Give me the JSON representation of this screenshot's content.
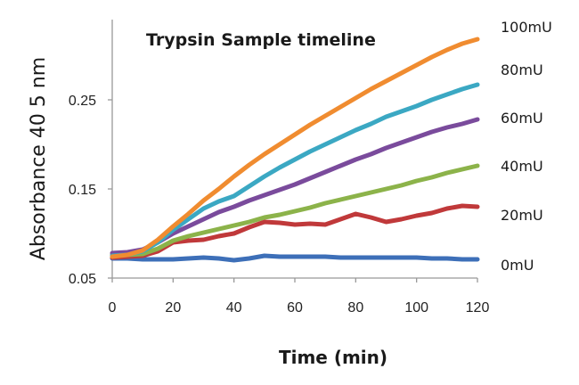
{
  "chart_data": {
    "type": "line",
    "title": "Trypsin Sample timeline",
    "xlabel": "Time (min)",
    "ylabel": "Absorbance 40 5 nm",
    "xlim": [
      0,
      120
    ],
    "ylim": [
      0.05,
      0.34
    ],
    "x_ticks": [
      "0",
      "20",
      "40",
      "60",
      "80",
      "100",
      "120"
    ],
    "y_ticks": [
      "0.05",
      "0.15",
      "0.25"
    ],
    "grid": false,
    "legend": "inline-right",
    "x": [
      0,
      5,
      10,
      15,
      20,
      25,
      30,
      35,
      40,
      45,
      50,
      55,
      60,
      65,
      70,
      75,
      80,
      85,
      90,
      95,
      100,
      105,
      110,
      115,
      120
    ],
    "series": [
      {
        "name": "0mU",
        "color": "#3d6fb8",
        "values": [
          0.072,
          0.072,
          0.071,
          0.071,
          0.071,
          0.072,
          0.073,
          0.072,
          0.07,
          0.072,
          0.075,
          0.074,
          0.074,
          0.074,
          0.074,
          0.073,
          0.073,
          0.073,
          0.073,
          0.073,
          0.073,
          0.072,
          0.072,
          0.071,
          0.071
        ]
      },
      {
        "name": "20mU",
        "color": "#c0393a",
        "values": [
          0.073,
          0.074,
          0.075,
          0.08,
          0.09,
          0.092,
          0.093,
          0.097,
          0.1,
          0.107,
          0.113,
          0.112,
          0.11,
          0.111,
          0.11,
          0.116,
          0.122,
          0.118,
          0.113,
          0.116,
          0.12,
          0.123,
          0.128,
          0.131,
          0.13
        ]
      },
      {
        "name": "40mU",
        "color": "#8cb34a",
        "values": [
          0.076,
          0.076,
          0.077,
          0.083,
          0.092,
          0.097,
          0.101,
          0.105,
          0.109,
          0.113,
          0.118,
          0.121,
          0.125,
          0.129,
          0.134,
          0.138,
          0.142,
          0.146,
          0.15,
          0.154,
          0.159,
          0.163,
          0.168,
          0.172,
          0.176
        ]
      },
      {
        "name": "60mU",
        "color": "#7a4b9c",
        "values": [
          0.078,
          0.079,
          0.082,
          0.09,
          0.1,
          0.108,
          0.116,
          0.124,
          0.13,
          0.137,
          0.143,
          0.149,
          0.155,
          0.162,
          0.169,
          0.176,
          0.183,
          0.189,
          0.196,
          0.202,
          0.208,
          0.214,
          0.219,
          0.223,
          0.228
        ]
      },
      {
        "name": "80mU",
        "color": "#3ba8c3",
        "values": [
          0.075,
          0.076,
          0.08,
          0.09,
          0.104,
          0.116,
          0.128,
          0.136,
          0.142,
          0.153,
          0.164,
          0.174,
          0.183,
          0.192,
          0.2,
          0.208,
          0.216,
          0.223,
          0.231,
          0.237,
          0.243,
          0.25,
          0.256,
          0.262,
          0.267
        ]
      },
      {
        "name": "100mU",
        "color": "#f08c30",
        "values": [
          0.074,
          0.076,
          0.081,
          0.093,
          0.108,
          0.122,
          0.137,
          0.15,
          0.164,
          0.177,
          0.189,
          0.2,
          0.211,
          0.222,
          0.232,
          0.242,
          0.252,
          0.262,
          0.271,
          0.28,
          0.289,
          0.298,
          0.306,
          0.313,
          0.318
        ]
      }
    ]
  }
}
